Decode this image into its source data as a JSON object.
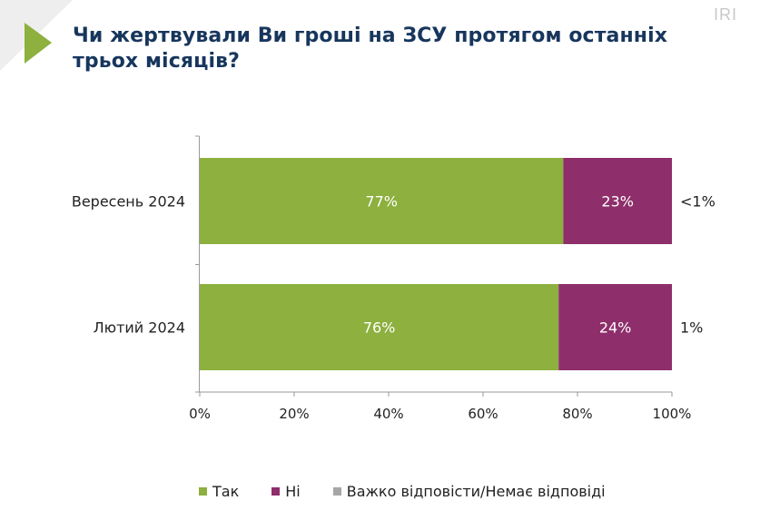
{
  "header": {
    "title": "Чи жертвували Ви гроші на ЗСУ протягом останніх трьох місяців?",
    "logo_text": "IRI",
    "accent_color": "#8db03f"
  },
  "chart_data": {
    "type": "bar",
    "orientation": "horizontal",
    "stacked": true,
    "categories": [
      "Вересень 2024",
      "Лютий 2024"
    ],
    "series": [
      {
        "name": "Так",
        "values": [
          77,
          76
        ],
        "labels": [
          "77%",
          "76%"
        ],
        "color": "#8db03f"
      },
      {
        "name": "Ні",
        "values": [
          23,
          24
        ],
        "labels": [
          "23%",
          "24%"
        ],
        "color": "#8e2e6b"
      },
      {
        "name": "Важко відповісти/Немає відповіді",
        "values": [
          0.4,
          1
        ],
        "labels": [
          "<1%",
          "1%"
        ],
        "color": "#a6a6a6"
      }
    ],
    "xlim": [
      0,
      100
    ],
    "xticks": [
      0,
      20,
      40,
      60,
      80,
      100
    ],
    "xtick_labels": [
      "0%",
      "20%",
      "40%",
      "60%",
      "80%",
      "100%"
    ],
    "grid": false,
    "legend_position": "bottom"
  }
}
